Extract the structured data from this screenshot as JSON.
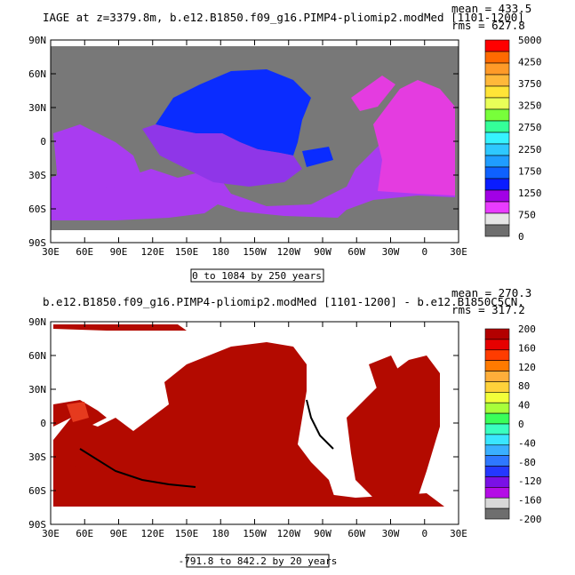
{
  "panels": [
    {
      "title": "IAGE at z=3379.8m, b.e12.B1850.f09_g16.PIMP4-pliomip2.modMed [1101-1200]",
      "stats": [
        "mean = 433.5",
        "rms = 627.8"
      ],
      "range_label": "0 to 1084 by 250 years",
      "x_ticks": [
        "30E",
        "60E",
        "90E",
        "120E",
        "150E",
        "180",
        "150W",
        "120W",
        "90W",
        "60W",
        "30W",
        "0",
        "30E"
      ],
      "y_ticks": [
        "90N",
        "60N",
        "30N",
        "0",
        "30S",
        "60S",
        "90S"
      ],
      "colorbar": {
        "tick_labels": [
          "5000",
          "4250",
          "3750",
          "3250",
          "2750",
          "2250",
          "1750",
          "1250",
          "750",
          "0"
        ],
        "colors": [
          "#ff0000",
          "#ff6a00",
          "#ff9a28",
          "#ffb83a",
          "#ffe437",
          "#e9ff58",
          "#78ff3a",
          "#34ff99",
          "#36f3ff",
          "#2ec8ff",
          "#1f9dff",
          "#0e61ff",
          "#0a1cff",
          "#a200e6",
          "#e93cff",
          "#e6e6e6",
          "#6e6e6e"
        ]
      },
      "map_colors": {
        "land": "#787878",
        "ocean_blue": "#0a2cff",
        "ocean_purple": "#a93cf0",
        "ocean_magenta": "#e43ce0",
        "ocean_violet": "#8f36e8"
      }
    },
    {
      "title": "b.e12.B1850.f09_g16.PIMP4-pliomip2.modMed [1101-1200] - b.e12.B1850C5CN.",
      "stats": [
        "mean = 270.3",
        "rms = 317.2"
      ],
      "range_label": "-791.8 to 842.2 by 20 years",
      "x_ticks": [
        "30E",
        "60E",
        "90E",
        "120E",
        "150E",
        "180",
        "150W",
        "120W",
        "90W",
        "60W",
        "30W",
        "0",
        "30E"
      ],
      "y_ticks": [
        "90N",
        "60N",
        "30N",
        "0",
        "30S",
        "60S",
        "90S"
      ],
      "colorbar": {
        "tick_labels": [
          "200",
          "160",
          "120",
          "80",
          "40",
          "0",
          "-40",
          "-80",
          "-120",
          "-160",
          "-200"
        ],
        "colors": [
          "#b30000",
          "#e60000",
          "#ff3c00",
          "#ff7a00",
          "#ffae3a",
          "#ffd23a",
          "#f2ff3a",
          "#a8ff3a",
          "#3aff5a",
          "#3affc0",
          "#3ae6ff",
          "#3ab0ff",
          "#2e78ff",
          "#2438ff",
          "#7a10e6",
          "#b40ce6",
          "#d8d8d8",
          "#6e6e6e"
        ]
      },
      "map_colors": {
        "ocean": "#b30a00",
        "ocean_light": "#e63a1e",
        "contour": "#000000",
        "land": "#ffffff"
      }
    }
  ]
}
